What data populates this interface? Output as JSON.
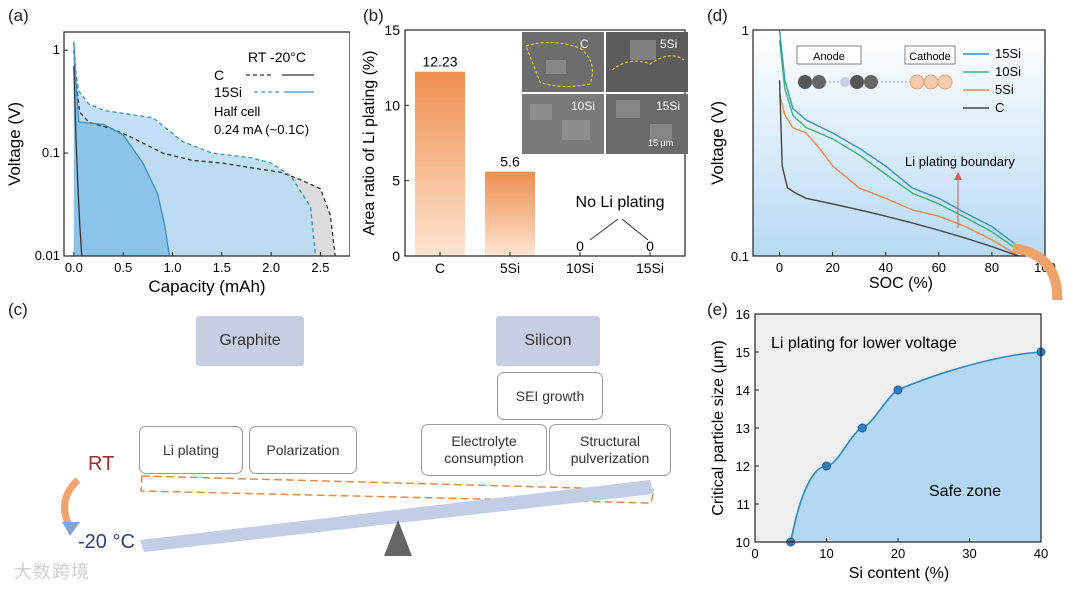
{
  "panels": {
    "a": {
      "label": "(a)",
      "legend_header": "RT  -20°C",
      "legend_c": "C",
      "legend_15si": "15Si",
      "note_line1": "Half cell",
      "note_line2": "0.24 mA (~0.1C)"
    },
    "b": {
      "label": "(b)",
      "no_plating_text": "No Li plating",
      "sem_labels": [
        "C",
        "5Si",
        "10Si",
        "15Si"
      ],
      "scale_bar": "15 μm"
    },
    "c": {
      "label": "(c)",
      "graphite": "Graphite",
      "silicon": "Silicon",
      "sei_growth": "SEI growth",
      "li_plating": "Li plating",
      "polarization": "Polarization",
      "electrolyte": "Electrolyte\nconsumption",
      "structural": "Structural\npulverization",
      "rt": "RT",
      "minus20": "-20 °C"
    },
    "d": {
      "label": "(d)",
      "anode": "Anode",
      "cathode": "Cathode",
      "boundary": "Li plating boundary"
    },
    "e": {
      "label": "(e)",
      "top_text": "Li plating for lower voltage",
      "safe_text": "Safe zone"
    }
  },
  "watermark": "大数跨境",
  "colors": {
    "orange": "#ee9b5e",
    "blue": "#3a8fd0",
    "lightblue": "#a9d3f0",
    "grey": "#d9d9d9"
  },
  "chart_data": [
    {
      "id": "a",
      "type": "line",
      "xlabel": "Capacity (mAh)",
      "ylabel": "Voltage (V)",
      "xlim": [
        -0.1,
        2.8
      ],
      "ylim": [
        0.01,
        1.5
      ],
      "yscale": "log",
      "xticks": [
        "0.0",
        "0.5",
        "1.0",
        "1.5",
        "2.0",
        "2.5"
      ],
      "yticks": [
        "0.01",
        "0.1",
        "1"
      ],
      "series": [
        {
          "name": "C RT",
          "style": "dashed",
          "color": "#333333",
          "x": [
            0,
            0.02,
            0.06,
            0.15,
            0.4,
            0.6,
            0.9,
            1.2,
            1.5,
            1.8,
            2.1,
            2.3,
            2.5,
            2.6,
            2.65
          ],
          "y": [
            1.0,
            0.5,
            0.25,
            0.2,
            0.17,
            0.14,
            0.1,
            0.085,
            0.08,
            0.072,
            0.065,
            0.055,
            0.045,
            0.025,
            0.01
          ]
        },
        {
          "name": "C -20°C",
          "style": "solid",
          "color": "#333333",
          "x": [
            0,
            0.02,
            0.04,
            0.06,
            0.08
          ],
          "y": [
            0.7,
            0.15,
            0.05,
            0.02,
            0.01
          ]
        },
        {
          "name": "15Si RT",
          "style": "dashed",
          "color": "#3a8fd0",
          "x": [
            0,
            0.02,
            0.05,
            0.15,
            0.3,
            0.8,
            1.1,
            1.4,
            1.8,
            2.0,
            2.2,
            2.4,
            2.45
          ],
          "y": [
            1.2,
            0.6,
            0.4,
            0.3,
            0.26,
            0.22,
            0.13,
            0.1,
            0.09,
            0.08,
            0.06,
            0.03,
            0.01
          ]
        },
        {
          "name": "15Si -20°C",
          "style": "solid",
          "color": "#3a8fd0",
          "x": [
            0,
            0.02,
            0.05,
            0.3,
            0.5,
            0.7,
            0.85,
            0.92,
            0.97
          ],
          "y": [
            1.2,
            0.5,
            0.2,
            0.19,
            0.15,
            0.08,
            0.04,
            0.02,
            0.01
          ]
        }
      ]
    },
    {
      "id": "b",
      "type": "bar",
      "categories": [
        "C",
        "5Si",
        "10Si",
        "15Si"
      ],
      "values": [
        12.23,
        5.6,
        0,
        0
      ],
      "value_labels": [
        "12.23",
        "5.6",
        "0",
        "0"
      ],
      "ylabel": "Area ratio of Li plating (%)",
      "ylim": [
        0,
        15
      ],
      "yticks": [
        "0",
        "5",
        "10",
        "15"
      ]
    },
    {
      "id": "d",
      "type": "line",
      "xlabel": "SOC (%)",
      "ylabel": "Voltage (V)",
      "xlim": [
        -10,
        100
      ],
      "ylim": [
        0.1,
        1
      ],
      "yscale": "log",
      "xticks": [
        "0",
        "20",
        "40",
        "60",
        "80",
        "100"
      ],
      "yticks": [
        "0.1",
        "1"
      ],
      "series": [
        {
          "name": "15Si",
          "color": "#3a8fd0",
          "x": [
            0,
            2,
            5,
            10,
            20,
            30,
            40,
            50,
            60,
            70,
            80,
            90
          ],
          "y": [
            1.0,
            0.6,
            0.45,
            0.4,
            0.35,
            0.3,
            0.25,
            0.2,
            0.18,
            0.155,
            0.135,
            0.11
          ]
        },
        {
          "name": "10Si",
          "color": "#3cb371",
          "x": [
            0,
            2,
            5,
            10,
            20,
            30,
            40,
            50,
            60,
            70,
            80,
            90
          ],
          "y": [
            0.9,
            0.55,
            0.42,
            0.37,
            0.33,
            0.28,
            0.23,
            0.19,
            0.17,
            0.148,
            0.128,
            0.106
          ]
        },
        {
          "name": "5Si",
          "color": "#ee8a46",
          "x": [
            0,
            2,
            5,
            10,
            15,
            20,
            30,
            40,
            50,
            60,
            70,
            80,
            90
          ],
          "y": [
            0.52,
            0.42,
            0.37,
            0.35,
            0.3,
            0.25,
            0.2,
            0.18,
            0.16,
            0.15,
            0.135,
            0.118,
            0.1
          ]
        },
        {
          "name": "C",
          "color": "#444444",
          "x": [
            0,
            1,
            3,
            6,
            10,
            20,
            30,
            40,
            50,
            60,
            70,
            80,
            90
          ],
          "y": [
            0.6,
            0.25,
            0.2,
            0.19,
            0.18,
            0.17,
            0.16,
            0.15,
            0.14,
            0.13,
            0.12,
            0.11,
            0.1
          ]
        }
      ]
    },
    {
      "id": "e",
      "type": "scatter",
      "xlabel": "Si content (%)",
      "ylabel": "Critical particle size (μm)",
      "xlim": [
        0,
        40
      ],
      "ylim": [
        10,
        16
      ],
      "xticks": [
        "0",
        "10",
        "20",
        "30",
        "40"
      ],
      "yticks": [
        "10",
        "11",
        "12",
        "13",
        "14",
        "15",
        "16"
      ],
      "points": [
        {
          "x": 5,
          "y": 10
        },
        {
          "x": 10,
          "y": 12
        },
        {
          "x": 15,
          "y": 13
        },
        {
          "x": 20,
          "y": 14
        },
        {
          "x": 40,
          "y": 15
        }
      ]
    }
  ]
}
